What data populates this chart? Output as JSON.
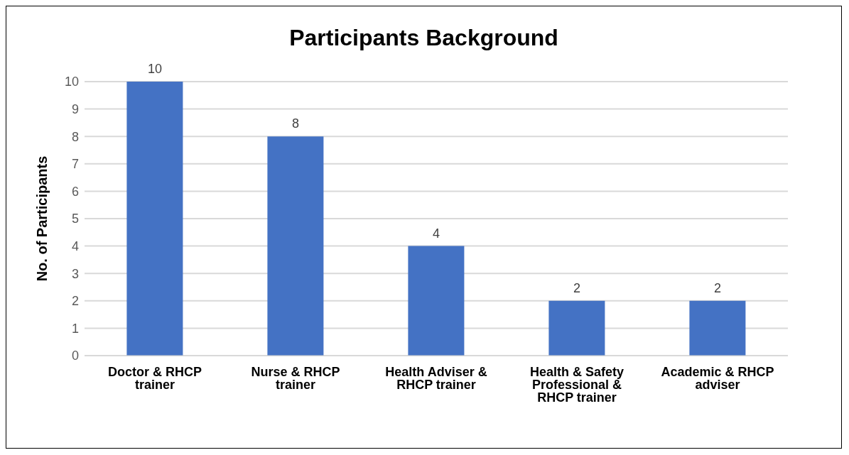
{
  "chart_data": {
    "type": "bar",
    "title": "Participants Background",
    "ylabel": "No. of Participants",
    "categories": [
      "Doctor & RHCP trainer",
      "Nurse & RHCP trainer",
      "Health Adviser & RHCP trainer",
      "Health & Safety Professional & RHCP trainer",
      "Academic & RHCP adviser"
    ],
    "values": [
      10,
      8,
      4,
      2,
      2
    ],
    "color": "#4472c4",
    "ylim": [
      0,
      10
    ],
    "yticks": [
      0,
      1,
      2,
      3,
      4,
      5,
      6,
      7,
      8,
      9,
      10
    ],
    "grid": "y",
    "data_labels": true
  }
}
